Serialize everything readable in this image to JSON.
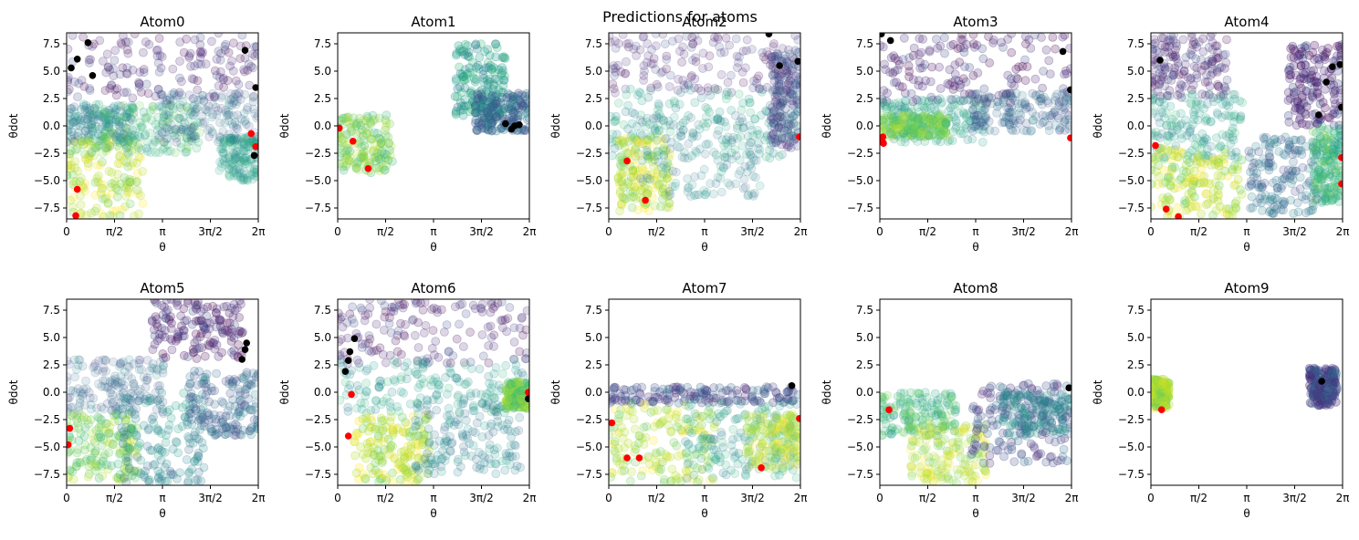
{
  "figure_title": "Predictions for atoms",
  "colors": {
    "viridis": [
      "#440154",
      "#482878",
      "#3e4989",
      "#31688e",
      "#26828e",
      "#1f9e89",
      "#35b779",
      "#6ece58",
      "#b5de2b",
      "#fde725"
    ],
    "start_marker": "#ff0000",
    "end_marker": "#000000",
    "axis": "#000000"
  },
  "chart_data": [
    {
      "type": "scatter",
      "title": "Atom0",
      "xlabel": "θ",
      "ylabel": "θdot",
      "xlim": [
        0,
        6.2832
      ],
      "ylim": [
        -8.5,
        8.5
      ],
      "xticks": [
        0,
        1.5708,
        3.1416,
        4.7124,
        6.2832
      ],
      "xticklabels": [
        "0",
        "π/2",
        "π",
        "3π/2",
        "2π"
      ],
      "yticks": [
        -7.5,
        -5.0,
        -2.5,
        0.0,
        2.5,
        5.0,
        7.5
      ],
      "yticklabels": [
        "−7.5",
        "−5.0",
        "−2.5",
        "0.0",
        "2.5",
        "5.0",
        "7.5"
      ],
      "cloud": [
        {
          "x": [
            0,
            6.28
          ],
          "y": [
            2.5,
            8.5
          ],
          "color": 1,
          "opacity": 0.35
        },
        {
          "x": [
            0,
            2.2
          ],
          "y": [
            -1.5,
            2.0
          ],
          "color": 4,
          "opacity": 0.3
        },
        {
          "x": [
            0,
            2.5
          ],
          "y": [
            -8.3,
            -1.0
          ],
          "color": 8,
          "opacity": 0.4
        },
        {
          "x": [
            0.8,
            4.4
          ],
          "y": [
            -2.5,
            2.0
          ],
          "color": 6,
          "opacity": 0.3
        },
        {
          "x": [
            3.0,
            6.28
          ],
          "y": [
            -1.5,
            3.0
          ],
          "color": 3,
          "opacity": 0.25
        },
        {
          "x": [
            5.0,
            6.28
          ],
          "y": [
            -5.0,
            -1.0
          ],
          "color": 5,
          "opacity": 0.25
        }
      ],
      "start_points": [
        [
          0.35,
          -5.8
        ],
        [
          0.3,
          -8.2
        ],
        [
          6.2,
          -1.9
        ],
        [
          6.05,
          -0.7
        ]
      ],
      "end_points": [
        [
          0.15,
          5.3
        ],
        [
          0.35,
          6.1
        ],
        [
          0.7,
          7.6
        ],
        [
          0.85,
          4.6
        ],
        [
          5.85,
          6.9
        ],
        [
          6.2,
          3.5
        ],
        [
          6.15,
          -2.7
        ]
      ]
    },
    {
      "type": "scatter",
      "title": "Atom1",
      "xlabel": "θ",
      "ylabel": "θdot",
      "xlim": [
        0,
        6.2832
      ],
      "ylim": [
        -8.5,
        8.5
      ],
      "xticks": [
        0,
        1.5708,
        3.1416,
        4.7124,
        6.2832
      ],
      "xticklabels": [
        "0",
        "π/2",
        "π",
        "3π/2",
        "2π"
      ],
      "yticks": [
        -7.5,
        -5.0,
        -2.5,
        0.0,
        2.5,
        5.0,
        7.5
      ],
      "yticklabels": [
        "−7.5",
        "−5.0",
        "−2.5",
        "0.0",
        "2.5",
        "5.0",
        "7.5"
      ],
      "cloud": [
        {
          "x": [
            0,
            1.8
          ],
          "y": [
            -4.3,
            1.0
          ],
          "color": 7,
          "opacity": 0.4
        },
        {
          "x": [
            3.8,
            5.5
          ],
          "y": [
            0.5,
            7.5
          ],
          "color": 5,
          "opacity": 0.45
        },
        {
          "x": [
            4.5,
            6.28
          ],
          "y": [
            -0.5,
            3.0
          ],
          "color": 3,
          "opacity": 0.45
        }
      ],
      "start_points": [
        [
          0.05,
          -0.2
        ],
        [
          0.5,
          -1.4
        ],
        [
          1.0,
          -3.9
        ]
      ],
      "end_points": [
        [
          5.5,
          0.2
        ],
        [
          5.8,
          0.0
        ],
        [
          5.95,
          0.1
        ],
        [
          5.7,
          -0.3
        ]
      ]
    },
    {
      "type": "scatter",
      "title": "Atom2",
      "xlabel": "θ",
      "ylabel": "θdot",
      "xlim": [
        0,
        6.2832
      ],
      "ylim": [
        -8.5,
        8.5
      ],
      "xticks": [
        0,
        1.5708,
        3.1416,
        4.7124,
        6.2832
      ],
      "xticklabels": [
        "0",
        "π/2",
        "π",
        "3π/2",
        "2π"
      ],
      "yticks": [
        -7.5,
        -5.0,
        -2.5,
        0.0,
        2.5,
        5.0,
        7.5
      ],
      "yticklabels": [
        "−7.5",
        "−5.0",
        "−2.5",
        "0.0",
        "2.5",
        "5.0",
        "7.5"
      ],
      "cloud": [
        {
          "x": [
            0,
            6.28
          ],
          "y": [
            3.0,
            8.5
          ],
          "color": 1,
          "opacity": 0.3
        },
        {
          "x": [
            0,
            6.28
          ],
          "y": [
            -3.0,
            3.5
          ],
          "color": 5,
          "opacity": 0.3
        },
        {
          "x": [
            0.3,
            2.0
          ],
          "y": [
            -7.8,
            -1.0
          ],
          "color": 8,
          "opacity": 0.4
        },
        {
          "x": [
            1.0,
            5.0
          ],
          "y": [
            -6.5,
            1.0
          ],
          "color": 4,
          "opacity": 0.25
        },
        {
          "x": [
            5.3,
            6.28
          ],
          "y": [
            -2.0,
            7.0
          ],
          "color": 2,
          "opacity": 0.35
        }
      ],
      "start_points": [
        [
          0.6,
          -3.2
        ],
        [
          1.2,
          -6.8
        ],
        [
          6.25,
          -1.0
        ]
      ],
      "end_points": [
        [
          5.6,
          5.5
        ],
        [
          6.2,
          5.9
        ],
        [
          5.25,
          8.4
        ]
      ]
    },
    {
      "type": "scatter",
      "title": "Atom3",
      "xlabel": "θ",
      "ylabel": "θdot",
      "xlim": [
        0,
        6.2832
      ],
      "ylim": [
        -8.5,
        8.5
      ],
      "xticks": [
        0,
        1.5708,
        3.1416,
        4.7124,
        6.2832
      ],
      "xticklabels": [
        "0",
        "π/2",
        "π",
        "3π/2",
        "2π"
      ],
      "yticks": [
        -7.5,
        -5.0,
        -2.5,
        0.0,
        2.5,
        5.0,
        7.5
      ],
      "yticklabels": [
        "−7.5",
        "−5.0",
        "−2.5",
        "0.0",
        "2.5",
        "5.0",
        "7.5"
      ],
      "cloud": [
        {
          "x": [
            0,
            6.28
          ],
          "y": [
            2.0,
            8.5
          ],
          "color": 1,
          "opacity": 0.4
        },
        {
          "x": [
            0,
            3.5
          ],
          "y": [
            -1.5,
            2.5
          ],
          "color": 5,
          "opacity": 0.3
        },
        {
          "x": [
            0,
            2.2
          ],
          "y": [
            -1.0,
            1.0
          ],
          "color": 7,
          "opacity": 0.45
        },
        {
          "x": [
            3.0,
            6.28
          ],
          "y": [
            -0.5,
            3.0
          ],
          "color": 3,
          "opacity": 0.3
        }
      ],
      "start_points": [
        [
          0.1,
          -1.0
        ],
        [
          0.08,
          -1.4
        ],
        [
          0.12,
          -1.6
        ],
        [
          6.25,
          -1.1
        ]
      ],
      "end_points": [
        [
          0.05,
          8.4
        ],
        [
          0.35,
          7.8
        ],
        [
          6.0,
          6.8
        ],
        [
          6.25,
          3.3
        ]
      ]
    },
    {
      "type": "scatter",
      "title": "Atom4",
      "xlabel": "θ",
      "ylabel": "θdot",
      "xlim": [
        0,
        6.2832
      ],
      "ylim": [
        -8.5,
        8.5
      ],
      "xticks": [
        0,
        1.5708,
        3.1416,
        4.7124,
        6.2832
      ],
      "xticklabels": [
        "0",
        "π/2",
        "π",
        "3π/2",
        "2π"
      ],
      "yticks": [
        -7.5,
        -5.0,
        -2.5,
        0.0,
        2.5,
        5.0,
        7.5
      ],
      "yticklabels": [
        "−7.5",
        "−5.0",
        "−2.5",
        "0.0",
        "2.5",
        "5.0",
        "7.5"
      ],
      "cloud": [
        {
          "x": [
            0,
            2.5
          ],
          "y": [
            2.5,
            8.5
          ],
          "color": 1,
          "opacity": 0.35
        },
        {
          "x": [
            0,
            3.0
          ],
          "y": [
            -3.0,
            3.0
          ],
          "color": 5,
          "opacity": 0.3
        },
        {
          "x": [
            0,
            3.0
          ],
          "y": [
            -8.3,
            -2.0
          ],
          "color": 8,
          "opacity": 0.45
        },
        {
          "x": [
            3.2,
            5.5
          ],
          "y": [
            -8.0,
            -1.0
          ],
          "color": 3,
          "opacity": 0.35
        },
        {
          "x": [
            4.5,
            6.28
          ],
          "y": [
            0.0,
            7.5
          ],
          "color": 1,
          "opacity": 0.45
        },
        {
          "x": [
            5.3,
            6.28
          ],
          "y": [
            -7.0,
            0.0
          ],
          "color": 6,
          "opacity": 0.4
        }
      ],
      "start_points": [
        [
          0.15,
          -1.8
        ],
        [
          0.5,
          -7.6
        ],
        [
          6.25,
          -2.9
        ],
        [
          6.25,
          -5.3
        ],
        [
          0.9,
          -8.3
        ]
      ],
      "end_points": [
        [
          0.3,
          6.0
        ],
        [
          5.5,
          1.0
        ],
        [
          5.75,
          4.0
        ],
        [
          5.95,
          5.4
        ],
        [
          6.2,
          5.6
        ],
        [
          6.25,
          1.7
        ]
      ]
    },
    {
      "type": "scatter",
      "title": "Atom5",
      "xlabel": "θ",
      "ylabel": "θdot",
      "xlim": [
        0,
        6.2832
      ],
      "ylim": [
        -8.5,
        8.5
      ],
      "xticks": [
        0,
        1.5708,
        3.1416,
        4.7124,
        6.2832
      ],
      "xticklabels": [
        "0",
        "π/2",
        "π",
        "3π/2",
        "2π"
      ],
      "yticks": [
        -7.5,
        -5.0,
        -2.5,
        0.0,
        2.5,
        5.0,
        7.5
      ],
      "yticklabels": [
        "−7.5",
        "−5.0",
        "−2.5",
        "0.0",
        "2.5",
        "5.0",
        "7.5"
      ],
      "cloud": [
        {
          "x": [
            2.8,
            5.8
          ],
          "y": [
            3.0,
            8.5
          ],
          "color": 1,
          "opacity": 0.4
        },
        {
          "x": [
            0,
            3.2
          ],
          "y": [
            -2.0,
            3.0
          ],
          "color": 3,
          "opacity": 0.25
        },
        {
          "x": [
            0,
            2.4
          ],
          "y": [
            -8.0,
            -2.0
          ],
          "color": 7,
          "opacity": 0.4
        },
        {
          "x": [
            1.8,
            4.5
          ],
          "y": [
            -8.3,
            0.0
          ],
          "color": 4,
          "opacity": 0.35
        },
        {
          "x": [
            4.0,
            6.28
          ],
          "y": [
            -4.0,
            2.0
          ],
          "color": 3,
          "opacity": 0.35
        }
      ],
      "start_points": [
        [
          0.1,
          -3.3
        ],
        [
          0.05,
          -4.8
        ]
      ],
      "end_points": [
        [
          5.85,
          3.9
        ],
        [
          5.75,
          3.0
        ],
        [
          5.9,
          4.5
        ]
      ]
    },
    {
      "type": "scatter",
      "title": "Atom6",
      "xlabel": "θ",
      "ylabel": "θdot",
      "xlim": [
        0,
        6.2832
      ],
      "ylim": [
        -8.5,
        8.5
      ],
      "xticks": [
        0,
        1.5708,
        3.1416,
        4.7124,
        6.2832
      ],
      "xticklabels": [
        "0",
        "π/2",
        "π",
        "3π/2",
        "2π"
      ],
      "yticks": [
        -7.5,
        -5.0,
        -2.5,
        0.0,
        2.5,
        5.0,
        7.5
      ],
      "yticklabels": [
        "−7.5",
        "−5.0",
        "−2.5",
        "0.0",
        "2.5",
        "5.0",
        "7.5"
      ],
      "cloud": [
        {
          "x": [
            0,
            6.28
          ],
          "y": [
            2.5,
            8.5
          ],
          "color": 1,
          "opacity": 0.35
        },
        {
          "x": [
            0,
            6.28
          ],
          "y": [
            -2.0,
            3.0
          ],
          "color": 5,
          "opacity": 0.3
        },
        {
          "x": [
            0.5,
            3.0
          ],
          "y": [
            -8.3,
            -2.0
          ],
          "color": 8,
          "opacity": 0.45
        },
        {
          "x": [
            2.5,
            6.0
          ],
          "y": [
            -7.5,
            -1.0
          ],
          "color": 4,
          "opacity": 0.3
        },
        {
          "x": [
            5.5,
            6.28
          ],
          "y": [
            -1.5,
            1.0
          ],
          "color": 7,
          "opacity": 0.45
        }
      ],
      "start_points": [
        [
          0.35,
          -4.0
        ],
        [
          6.25,
          0.0
        ],
        [
          0.45,
          -0.2
        ]
      ],
      "end_points": [
        [
          0.25,
          1.9
        ],
        [
          0.35,
          2.9
        ],
        [
          0.4,
          3.7
        ],
        [
          0.55,
          4.9
        ],
        [
          6.25,
          -0.6
        ]
      ]
    },
    {
      "type": "scatter",
      "title": "Atom7",
      "xlabel": "θ",
      "ylabel": "θdot",
      "xlim": [
        0,
        6.2832
      ],
      "ylim": [
        -8.5,
        8.5
      ],
      "xticks": [
        0,
        1.5708,
        3.1416,
        4.7124,
        6.2832
      ],
      "xticklabels": [
        "0",
        "π/2",
        "π",
        "3π/2",
        "2π"
      ],
      "yticks": [
        -7.5,
        -5.0,
        -2.5,
        0.0,
        2.5,
        5.0,
        7.5
      ],
      "yticklabels": [
        "−7.5",
        "−5.0",
        "−2.5",
        "0.0",
        "2.5",
        "5.0",
        "7.5"
      ],
      "cloud": [
        {
          "x": [
            0,
            6.28
          ],
          "y": [
            -1.0,
            0.5
          ],
          "color": 2,
          "opacity": 0.4
        },
        {
          "x": [
            0,
            3.5
          ],
          "y": [
            -8.3,
            -1.0
          ],
          "color": 8,
          "opacity": 0.4
        },
        {
          "x": [
            2.5,
            6.28
          ],
          "y": [
            -8.0,
            -1.0
          ],
          "color": 5,
          "opacity": 0.3
        },
        {
          "x": [
            4.5,
            6.28
          ],
          "y": [
            -7.0,
            -2.0
          ],
          "color": 8,
          "opacity": 0.35
        }
      ],
      "start_points": [
        [
          0.1,
          -2.8
        ],
        [
          0.6,
          -6.0
        ],
        [
          1.0,
          -6.0
        ],
        [
          5.0,
          -6.9
        ],
        [
          6.25,
          -2.4
        ]
      ],
      "end_points": [
        [
          6.0,
          0.6
        ]
      ]
    },
    {
      "type": "scatter",
      "title": "Atom8",
      "xlabel": "θ",
      "ylabel": "θdot",
      "xlim": [
        0,
        6.2832
      ],
      "ylim": [
        -8.5,
        8.5
      ],
      "xticks": [
        0,
        1.5708,
        3.1416,
        4.7124,
        6.2832
      ],
      "xticklabels": [
        "0",
        "π/2",
        "π",
        "3π/2",
        "2π"
      ],
      "yticks": [
        -7.5,
        -5.0,
        -2.5,
        0.0,
        2.5,
        5.0,
        7.5
      ],
      "yticklabels": [
        "−7.5",
        "−5.0",
        "−2.5",
        "0.0",
        "2.5",
        "5.0",
        "7.5"
      ],
      "cloud": [
        {
          "x": [
            0,
            2.5
          ],
          "y": [
            -4.0,
            0.0
          ],
          "color": 6,
          "opacity": 0.35
        },
        {
          "x": [
            1.0,
            3.5
          ],
          "y": [
            -8.3,
            -3.0
          ],
          "color": 8,
          "opacity": 0.35
        },
        {
          "x": [
            3.0,
            6.28
          ],
          "y": [
            -6.5,
            0.8
          ],
          "color": 2,
          "opacity": 0.4
        },
        {
          "x": [
            4.0,
            6.28
          ],
          "y": [
            -4.0,
            0.0
          ],
          "color": 4,
          "opacity": 0.35
        }
      ],
      "start_points": [
        [
          0.3,
          -1.6
        ]
      ],
      "end_points": [
        [
          6.2,
          0.4
        ]
      ]
    },
    {
      "type": "scatter",
      "title": "Atom9",
      "xlabel": "θ",
      "ylabel": "θdot",
      "xlim": [
        0,
        6.2832
      ],
      "ylim": [
        -8.5,
        8.5
      ],
      "xticks": [
        0,
        1.5708,
        3.1416,
        4.7124,
        6.2832
      ],
      "xticklabels": [
        "0",
        "π/2",
        "π",
        "3π/2",
        "2π"
      ],
      "yticks": [
        -7.5,
        -5.0,
        -2.5,
        0.0,
        2.5,
        5.0,
        7.5
      ],
      "yticklabels": [
        "−7.5",
        "−5.0",
        "−2.5",
        "0.0",
        "2.5",
        "5.0",
        "7.5"
      ],
      "cloud": [
        {
          "x": [
            0,
            0.6
          ],
          "y": [
            -1.5,
            1.2
          ],
          "color": 8,
          "opacity": 0.5
        },
        {
          "x": [
            5.2,
            6.1
          ],
          "y": [
            -1.2,
            2.2
          ],
          "color": 2,
          "opacity": 0.55
        }
      ],
      "start_points": [
        [
          0.35,
          -1.6
        ]
      ],
      "end_points": [
        [
          5.6,
          1.0
        ]
      ]
    }
  ]
}
